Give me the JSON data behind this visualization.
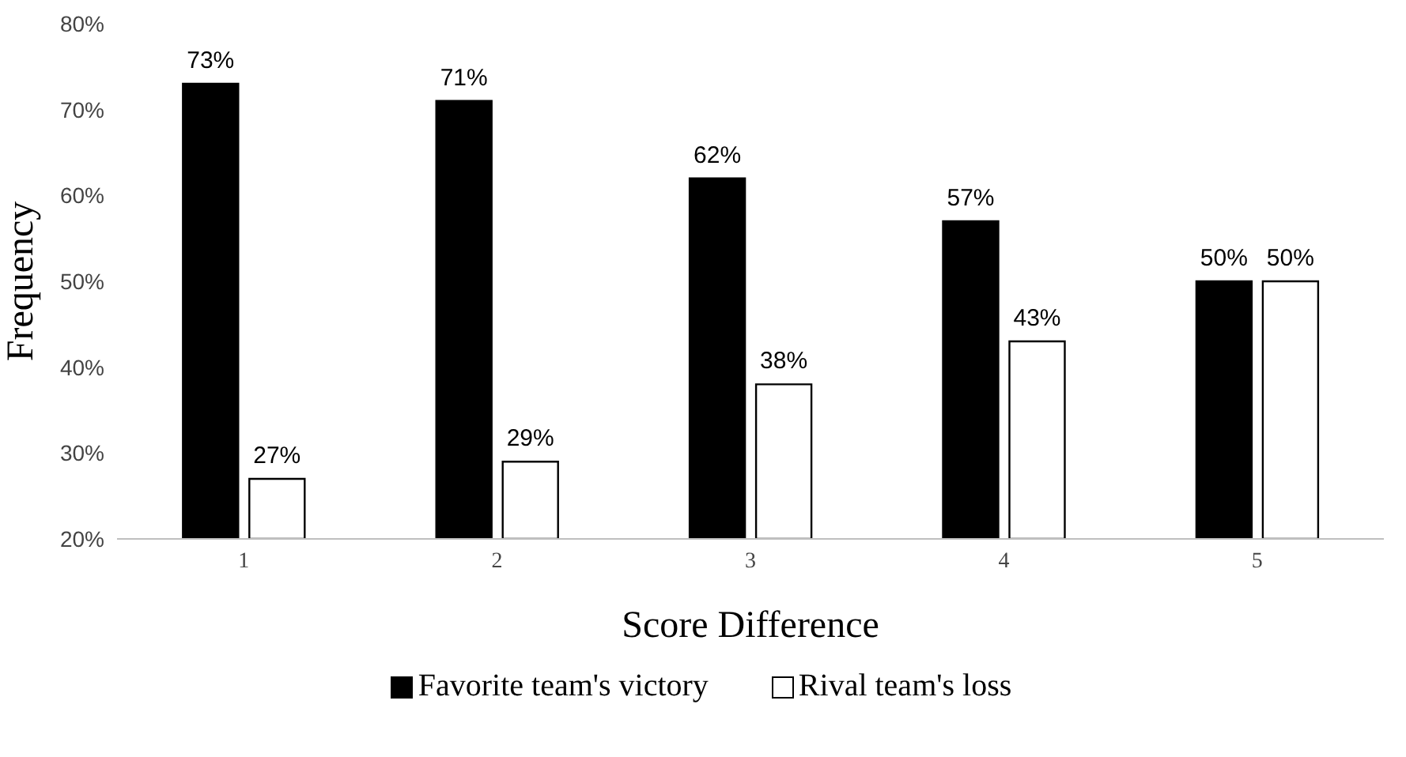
{
  "chart_data": {
    "type": "bar",
    "xlabel": "Score Difference",
    "ylabel": "Frequency",
    "categories": [
      "1",
      "2",
      "3",
      "4",
      "5"
    ],
    "series": [
      {
        "name": "Favorite team's victory",
        "color": "#000000",
        "values": [
          73,
          71,
          62,
          57,
          50
        ],
        "value_labels": [
          "73%",
          "71%",
          "62%",
          "57%",
          "50%"
        ]
      },
      {
        "name": "Rival team's loss",
        "color": "#ffffff",
        "values": [
          27,
          29,
          38,
          43,
          50
        ],
        "value_labels": [
          "27%",
          "29%",
          "38%",
          "43%",
          "50%"
        ]
      }
    ],
    "ylim": [
      20,
      80
    ],
    "yticks": [
      {
        "value": 20,
        "label": "20%"
      },
      {
        "value": 30,
        "label": "30%"
      },
      {
        "value": 40,
        "label": "40%"
      },
      {
        "value": 50,
        "label": "50%"
      },
      {
        "value": 60,
        "label": "60%"
      },
      {
        "value": 70,
        "label": "70%"
      },
      {
        "value": 80,
        "label": "80%"
      }
    ],
    "grid": false,
    "legend": "bottom"
  }
}
